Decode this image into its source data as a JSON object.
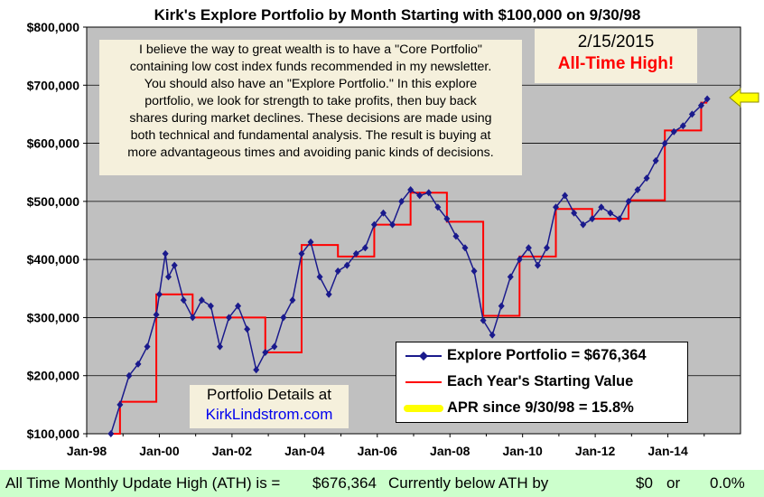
{
  "chart_data": {
    "type": "line",
    "title": "Kirk's Explore Portfolio by Month Starting with $100,000 on 9/30/98",
    "xlabel": "",
    "ylabel": "",
    "x_tick_labels": [
      "Jan-98",
      "Jan-00",
      "Jan-02",
      "Jan-04",
      "Jan-06",
      "Jan-08",
      "Jan-10",
      "Jan-12",
      "Jan-14"
    ],
    "y_tick_labels": [
      "$100,000",
      "$200,000",
      "$300,000",
      "$400,000",
      "$500,000",
      "$600,000",
      "$700,000",
      "$800,000"
    ],
    "xlim": [
      "1998-01",
      "2016-01"
    ],
    "ylim": [
      100000,
      800000
    ],
    "grid": true,
    "legend_position": "bottom-right",
    "plot_background": "#c0c0c0",
    "series": [
      {
        "name": "Explore Portfolio  =  $676,364",
        "color": "#1a1a8c",
        "marker": "diamond",
        "x": [
          "1998-09",
          "1998-12",
          "1999-03",
          "1999-06",
          "1999-09",
          "1999-12",
          "2000-01",
          "2000-03",
          "2000-04",
          "2000-06",
          "2000-09",
          "2000-12",
          "2001-03",
          "2001-06",
          "2001-09",
          "2001-12",
          "2002-03",
          "2002-06",
          "2002-09",
          "2002-12",
          "2003-03",
          "2003-06",
          "2003-09",
          "2003-12",
          "2004-03",
          "2004-06",
          "2004-09",
          "2004-12",
          "2005-03",
          "2005-06",
          "2005-09",
          "2005-12",
          "2006-03",
          "2006-06",
          "2006-09",
          "2006-12",
          "2007-03",
          "2007-06",
          "2007-09",
          "2007-12",
          "2008-03",
          "2008-06",
          "2008-09",
          "2008-12",
          "2009-03",
          "2009-06",
          "2009-09",
          "2009-12",
          "2010-03",
          "2010-06",
          "2010-09",
          "2010-12",
          "2011-03",
          "2011-06",
          "2011-09",
          "2011-12",
          "2012-03",
          "2012-06",
          "2012-09",
          "2012-12",
          "2013-03",
          "2013-06",
          "2013-09",
          "2013-12",
          "2014-03",
          "2014-06",
          "2014-09",
          "2014-12",
          "2015-02"
        ],
        "values": [
          100000,
          150000,
          200000,
          220000,
          250000,
          305000,
          340000,
          410000,
          370000,
          390000,
          330000,
          300000,
          330000,
          320000,
          250000,
          300000,
          320000,
          280000,
          210000,
          240000,
          250000,
          300000,
          330000,
          410000,
          430000,
          370000,
          340000,
          380000,
          390000,
          410000,
          420000,
          460000,
          480000,
          460000,
          500000,
          520000,
          510000,
          515000,
          490000,
          470000,
          440000,
          420000,
          380000,
          295000,
          270000,
          320000,
          370000,
          400000,
          420000,
          390000,
          420000,
          490000,
          510000,
          480000,
          460000,
          470000,
          490000,
          480000,
          470000,
          500000,
          520000,
          540000,
          570000,
          600000,
          620000,
          630000,
          650000,
          665000,
          676364
        ]
      },
      {
        "name": "Each Year's Starting Value",
        "color": "#ff0000",
        "step": true,
        "x": [
          "1998-09",
          "1998-12",
          "1999-12",
          "2000-12",
          "2002-12",
          "2003-12",
          "2004-12",
          "2005-12",
          "2006-12",
          "2007-12",
          "2008-12",
          "2009-12",
          "2010-12",
          "2011-12",
          "2012-12",
          "2013-12",
          "2014-12",
          "2015-02"
        ],
        "values": [
          100000,
          155000,
          340000,
          300000,
          240000,
          425000,
          405000,
          460000,
          515000,
          465000,
          303000,
          405000,
          487000,
          470000,
          502000,
          622000,
          670000,
          670000
        ]
      }
    ],
    "legend": {
      "explore": "Explore Portfolio  =  $676,364",
      "starting": "Each Year's Starting Value",
      "apr": "APR since 9/30/98 =  15.8%",
      "apr_color": "#ffff00"
    }
  },
  "note_lines": [
    "I believe the way to great wealth is to have a \"Core Portfolio\"",
    "containing low cost index funds recommended in my newsletter.",
    "You  should also have an \"Explore Portfolio.\" In this explore",
    "portfolio, we look for strength to take profits, then buy back",
    "shares during market declines. These decisions are made using",
    "both technical and fundamental analysis. The result is buying at",
    "more advantageous times and avoiding panic kinds of decisions."
  ],
  "date_box": {
    "date": "2/15/2015",
    "label": "All-Time  High!"
  },
  "details": {
    "line1": "Portfolio Details at",
    "link": "KirkLindstrom.com"
  },
  "footer": {
    "ath_label": "All Time Monthly Update High (ATH) is =",
    "ath_value": "$676,364",
    "below_label": "Currently below ATH by",
    "below_amount": "$0",
    "or": "or",
    "below_pct": "0.0%"
  },
  "arrow_color": "#ffff00"
}
